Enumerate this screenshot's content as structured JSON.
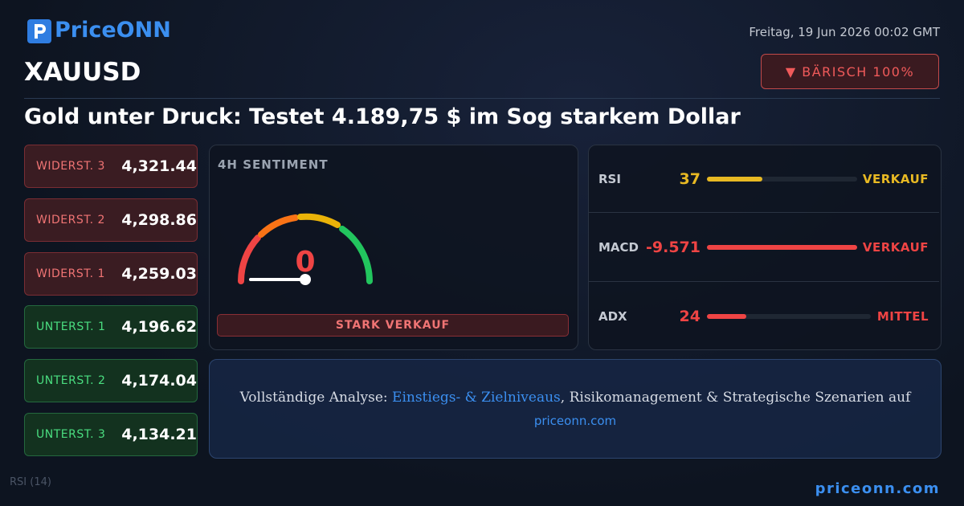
{
  "header": {
    "logo": "PriceONN",
    "date": "Freitag, 19 Jun 2026 00:02 GMT",
    "symbol": "XAUUSD",
    "badge": "▼ BÄRISCH 100%",
    "headline": "Gold unter Druck: Testet 4.189,75 $ im Sog starkem Dollar"
  },
  "levels": [
    {
      "label": "WIDERST. 3",
      "value": "4,321.44",
      "kind": "resistance"
    },
    {
      "label": "WIDERST. 2",
      "value": "4,298.86",
      "kind": "resistance"
    },
    {
      "label": "WIDERST. 1",
      "value": "4,259.03",
      "kind": "resistance"
    },
    {
      "label": "UNTERST. 1",
      "value": "4,196.62",
      "kind": "support"
    },
    {
      "label": "UNTERST. 2",
      "value": "4,174.04",
      "kind": "support"
    },
    {
      "label": "UNTERST. 3",
      "value": "4,134.21",
      "kind": "support"
    }
  ],
  "sentiment": {
    "title": "4H SENTIMENT",
    "value": 0,
    "verdict": "STARK VERKAUF"
  },
  "indicators": [
    {
      "name": "RSI",
      "value": 37,
      "signal": "VERKAUF",
      "color": "#e8b923"
    },
    {
      "name": "MACD",
      "value": -9.571,
      "signal": "VERKAUF",
      "color": "#ef4444"
    },
    {
      "name": "ADX",
      "value": 24,
      "signal": "MITTEL",
      "color": "#ef4444"
    }
  ],
  "banner": {
    "prefix": "Vollständige Analyse: ",
    "link": "Einstiegs- & Zielniveaus",
    "suffix": ", Risikomanagement & Strategische Szenarien auf",
    "url": "priceonn.com"
  },
  "footer": {
    "url": "priceonn.com",
    "chart_label": "RSI (14)"
  }
}
